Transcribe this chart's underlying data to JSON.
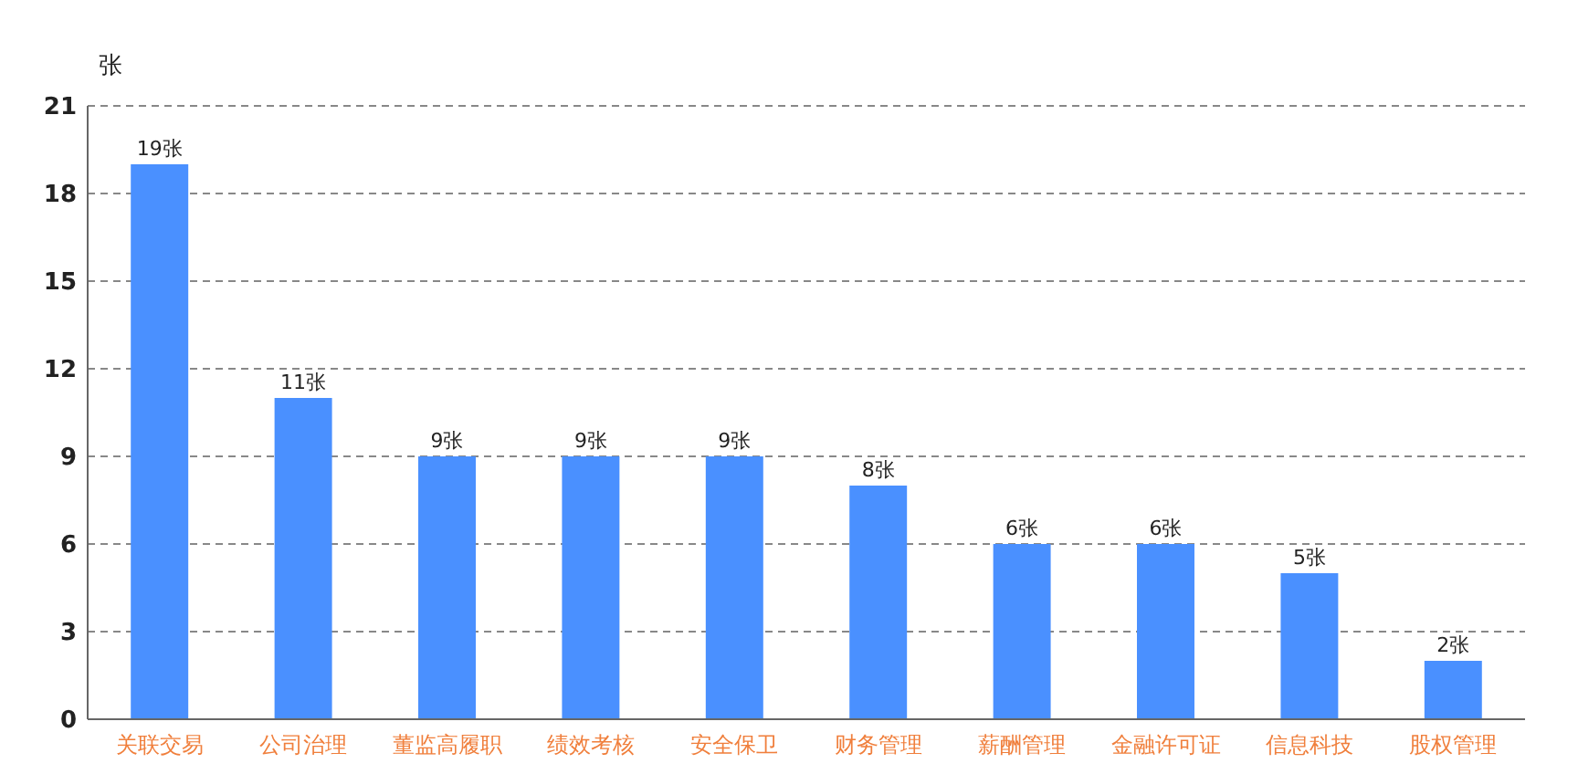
{
  "chart_data": {
    "type": "bar",
    "ylabel": "张",
    "categories": [
      "关联交易",
      "公司治理",
      "董监高履职",
      "绩效考核",
      "安全保卫",
      "财务管理",
      "薪酬管理",
      "金融许可证",
      "信息科技",
      "股权管理"
    ],
    "values": [
      19,
      11,
      9,
      9,
      9,
      8,
      6,
      6,
      5,
      2
    ],
    "value_labels": [
      "19张",
      "11张",
      "9张",
      "9张",
      "9张",
      "8张",
      "6张",
      "6张",
      "5张",
      "2张"
    ],
    "color": "#4a90ff",
    "ylim": [
      0,
      21
    ],
    "yticks": [
      0,
      3,
      6,
      9,
      12,
      15,
      18,
      21
    ],
    "grid": "y"
  }
}
